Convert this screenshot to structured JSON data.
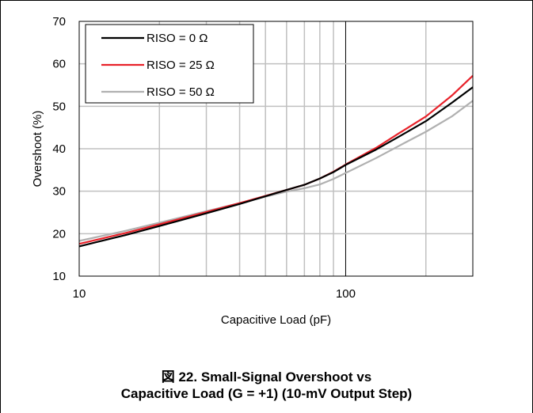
{
  "caption": {
    "line1": "図 22. Small-Signal Overshoot vs",
    "line2": "Capacitive Load (G = +1) (10-mV Output Step)"
  },
  "chart_data": {
    "type": "line",
    "title": "",
    "xlabel": "Capacitive Load (pF)",
    "ylabel": "Overshoot (%)",
    "xscale": "log",
    "xlim": [
      10,
      300
    ],
    "ylim": [
      10,
      70
    ],
    "xticks": [
      10,
      100
    ],
    "xtick_labels": [
      "10",
      "100"
    ],
    "yticks": [
      10,
      20,
      30,
      40,
      50,
      60,
      70
    ],
    "ytick_labels": [
      "10",
      "20",
      "30",
      "40",
      "50",
      "60",
      "70"
    ],
    "grid": true,
    "legend_position": "top-left",
    "series": [
      {
        "name": "RISO = 0 Ω",
        "color": "#000000",
        "x": [
          10,
          15,
          20,
          30,
          40,
          50,
          60,
          70,
          80,
          90,
          100,
          130,
          160,
          200,
          250,
          300
        ],
        "y": [
          17.0,
          19.7,
          21.8,
          24.8,
          27.0,
          28.8,
          30.3,
          31.5,
          33.0,
          34.5,
          36.2,
          39.8,
          43.0,
          46.5,
          50.8,
          54.5
        ]
      },
      {
        "name": "RISO = 25 Ω",
        "color": "#e8222a",
        "x": [
          10,
          15,
          20,
          30,
          40,
          50,
          60,
          70,
          80,
          90,
          100,
          130,
          160,
          200,
          250,
          300
        ],
        "y": [
          17.6,
          20.2,
          22.2,
          25.1,
          27.2,
          28.9,
          30.3,
          31.5,
          33.0,
          34.6,
          36.3,
          40.2,
          43.8,
          47.6,
          52.5,
          57.2
        ]
      },
      {
        "name": "RISO = 50 Ω",
        "color": "#b0b0b0",
        "x": [
          10,
          15,
          20,
          30,
          40,
          50,
          60,
          70,
          80,
          90,
          100,
          130,
          160,
          200,
          250,
          300
        ],
        "y": [
          18.3,
          20.7,
          22.6,
          25.3,
          27.2,
          28.7,
          29.9,
          30.7,
          31.6,
          32.9,
          34.3,
          37.8,
          40.8,
          44.0,
          47.6,
          51.3
        ]
      }
    ]
  }
}
